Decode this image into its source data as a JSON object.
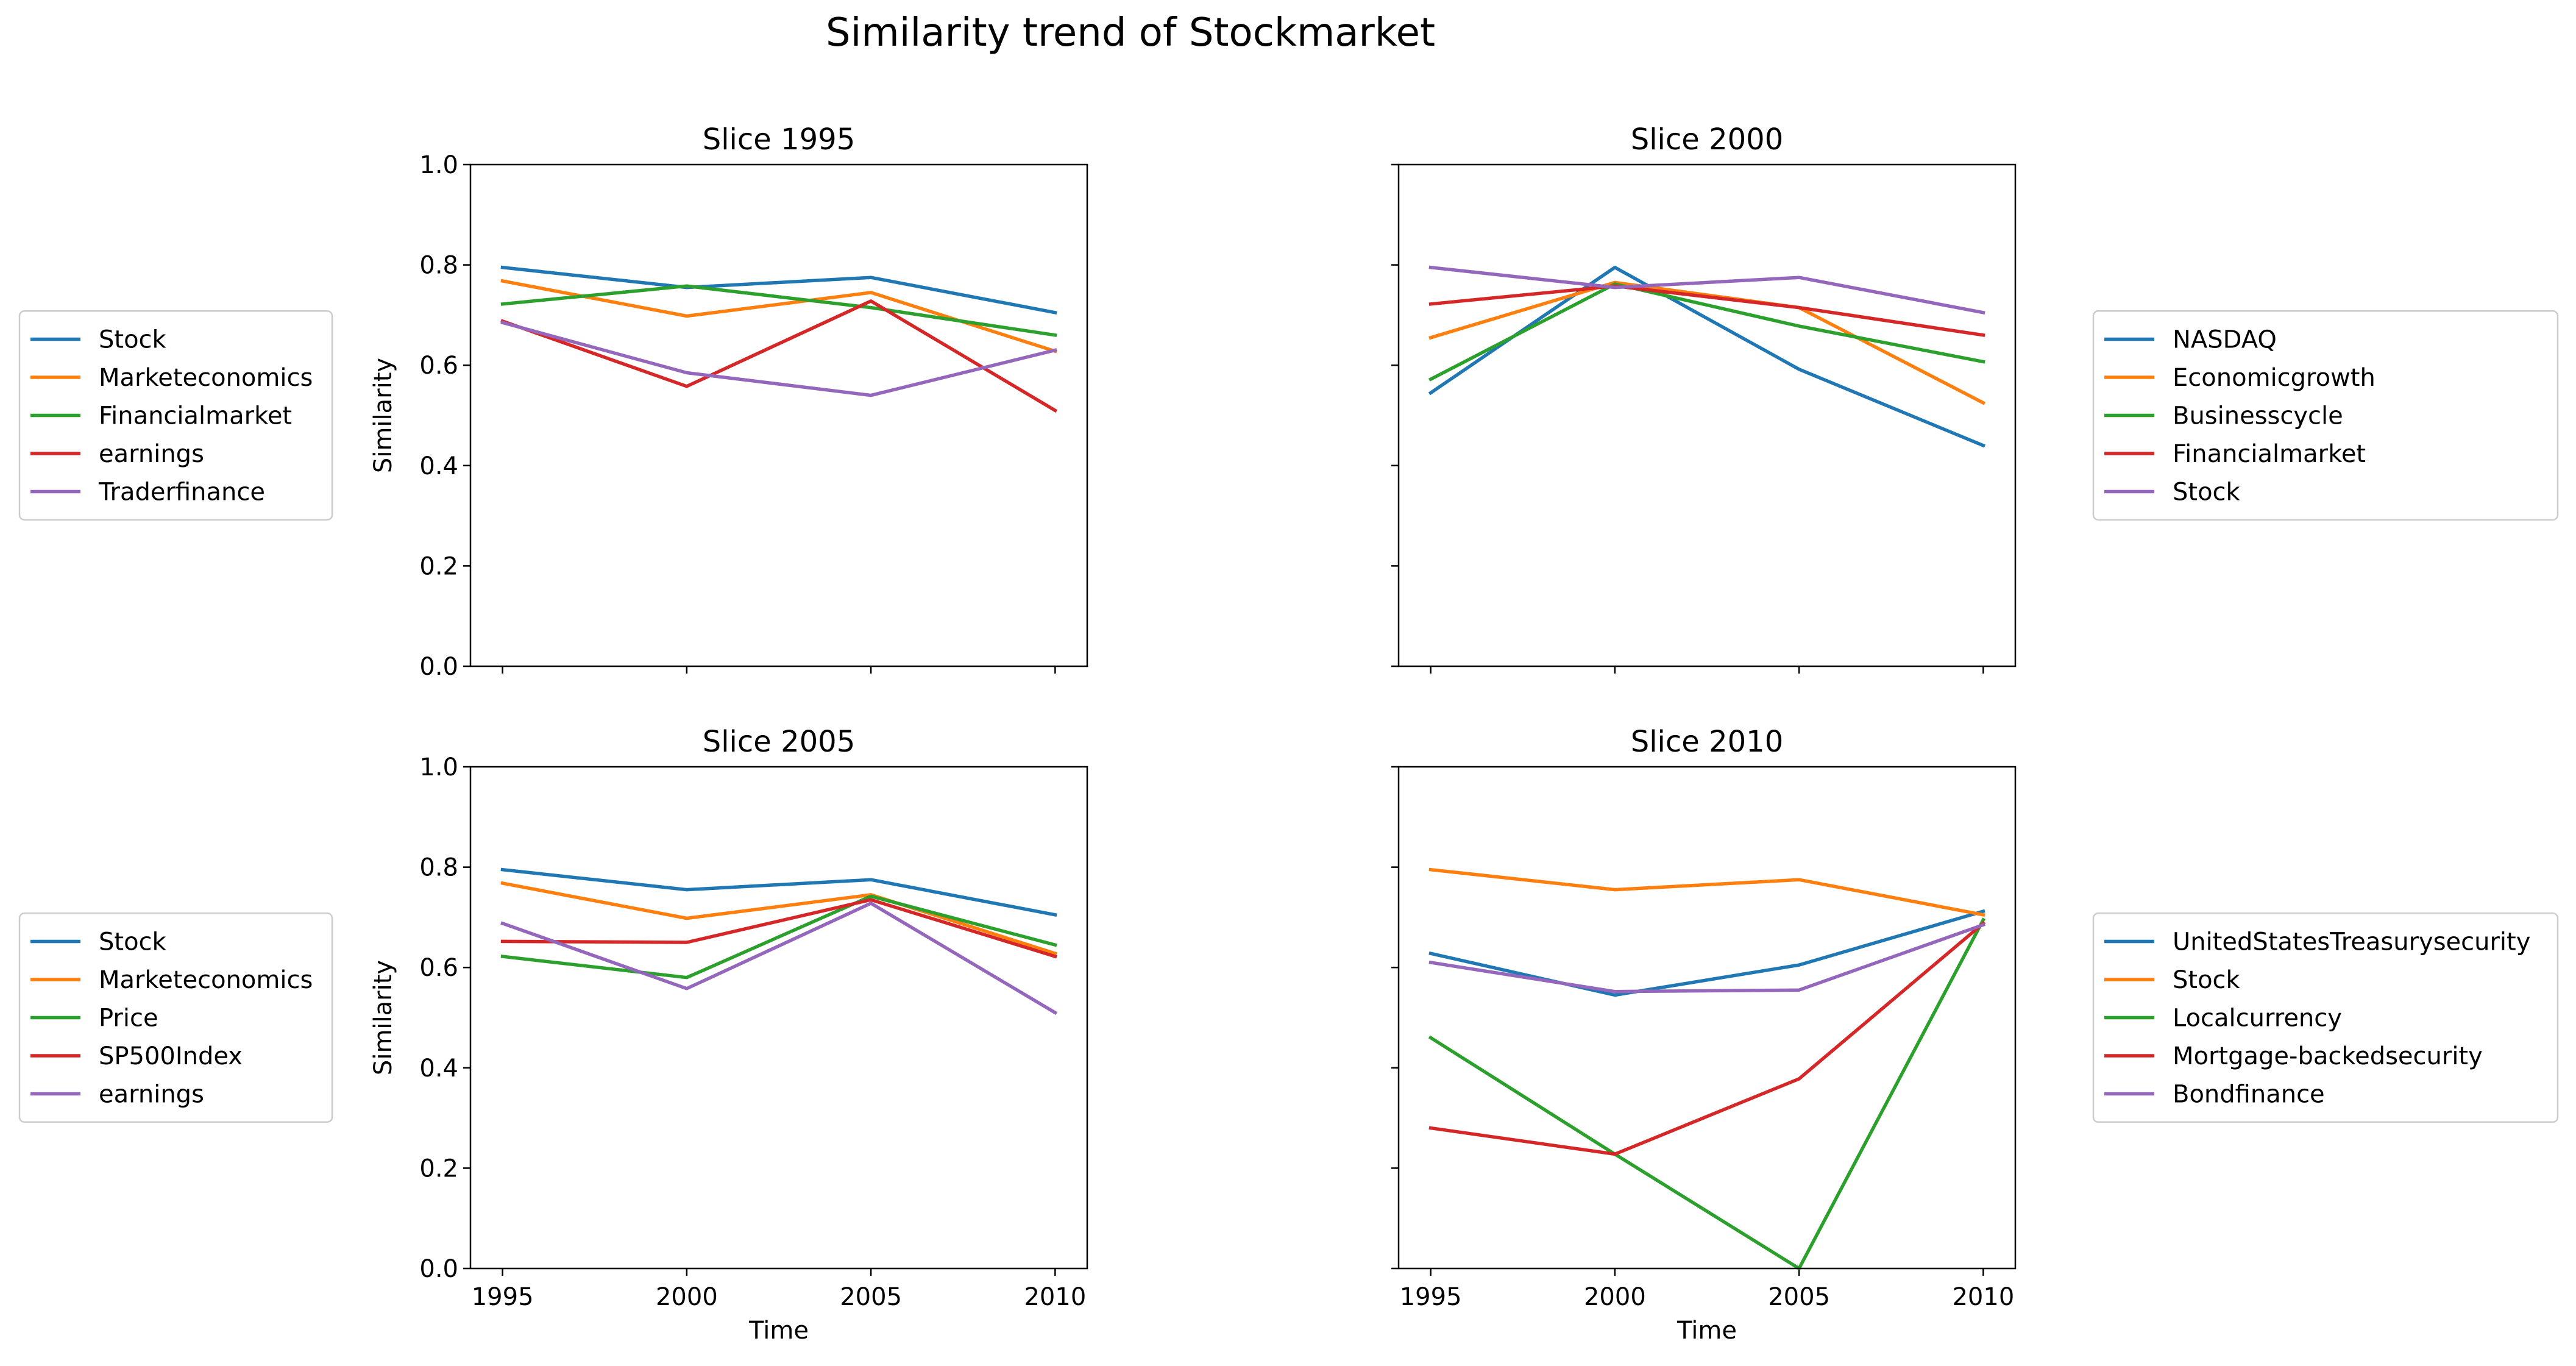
{
  "figure_title": "Similarity trend of Stockmarket",
  "chart_data": [
    {
      "type": "line",
      "title": "Slice 1995",
      "xlabel": "",
      "ylabel": "Similarity",
      "x": [
        "1995",
        "2000",
        "2005",
        "2010"
      ],
      "ylim": [
        0,
        1
      ],
      "yticks": [
        "0.0",
        "0.2",
        "0.4",
        "0.6",
        "0.8",
        "1.0"
      ],
      "show_xtick_labels": false,
      "show_ytick_labels": true,
      "legend_position": "left",
      "grid": false,
      "series": [
        {
          "name": "Stock",
          "color": "#1f77b4",
          "values": [
            0.795,
            0.755,
            0.775,
            0.705
          ]
        },
        {
          "name": "Marketeconomics",
          "color": "#ff7f0e",
          "values": [
            0.768,
            0.698,
            0.745,
            0.628
          ]
        },
        {
          "name": "Financialmarket",
          "color": "#2ca02c",
          "values": [
            0.722,
            0.758,
            0.715,
            0.66
          ]
        },
        {
          "name": "earnings",
          "color": "#d62728",
          "values": [
            0.688,
            0.558,
            0.728,
            0.51
          ]
        },
        {
          "name": "Traderfinance",
          "color": "#9467bd",
          "values": [
            0.685,
            0.585,
            0.54,
            0.63
          ]
        }
      ]
    },
    {
      "type": "line",
      "title": "Slice 2000",
      "xlabel": "",
      "ylabel": "",
      "x": [
        "1995",
        "2000",
        "2005",
        "2010"
      ],
      "ylim": [
        0,
        1
      ],
      "yticks": [
        "0.0",
        "0.2",
        "0.4",
        "0.6",
        "0.8",
        "1.0"
      ],
      "show_xtick_labels": false,
      "show_ytick_labels": false,
      "legend_position": "right",
      "grid": false,
      "series": [
        {
          "name": "NASDAQ",
          "color": "#1f77b4",
          "values": [
            0.545,
            0.795,
            0.592,
            0.44
          ]
        },
        {
          "name": "Economicgrowth",
          "color": "#ff7f0e",
          "values": [
            0.655,
            0.765,
            0.715,
            0.525
          ]
        },
        {
          "name": "Businesscycle",
          "color": "#2ca02c",
          "values": [
            0.572,
            0.762,
            0.678,
            0.607
          ]
        },
        {
          "name": "Financialmarket",
          "color": "#d62728",
          "values": [
            0.722,
            0.758,
            0.715,
            0.66
          ]
        },
        {
          "name": "Stock",
          "color": "#9467bd",
          "values": [
            0.795,
            0.755,
            0.775,
            0.705
          ]
        }
      ]
    },
    {
      "type": "line",
      "title": "Slice 2005",
      "xlabel": "Time",
      "ylabel": "Similarity",
      "x": [
        "1995",
        "2000",
        "2005",
        "2010"
      ],
      "ylim": [
        0,
        1
      ],
      "yticks": [
        "0.0",
        "0.2",
        "0.4",
        "0.6",
        "0.8",
        "1.0"
      ],
      "show_xtick_labels": true,
      "show_ytick_labels": true,
      "legend_position": "left",
      "grid": false,
      "series": [
        {
          "name": "Stock",
          "color": "#1f77b4",
          "values": [
            0.795,
            0.755,
            0.775,
            0.705
          ]
        },
        {
          "name": "Marketeconomics",
          "color": "#ff7f0e",
          "values": [
            0.768,
            0.698,
            0.745,
            0.628
          ]
        },
        {
          "name": "Price",
          "color": "#2ca02c",
          "values": [
            0.622,
            0.58,
            0.742,
            0.645
          ]
        },
        {
          "name": "SP500Index",
          "color": "#d62728",
          "values": [
            0.652,
            0.65,
            0.735,
            0.622
          ]
        },
        {
          "name": "earnings",
          "color": "#9467bd",
          "values": [
            0.688,
            0.558,
            0.728,
            0.51
          ]
        }
      ]
    },
    {
      "type": "line",
      "title": "Slice 2010",
      "xlabel": "Time",
      "ylabel": "",
      "x": [
        "1995",
        "2000",
        "2005",
        "2010"
      ],
      "ylim": [
        0,
        1
      ],
      "yticks": [
        "0.0",
        "0.2",
        "0.4",
        "0.6",
        "0.8",
        "1.0"
      ],
      "show_xtick_labels": true,
      "show_ytick_labels": false,
      "legend_position": "right",
      "grid": false,
      "series": [
        {
          "name": "UnitedStatesTreasurysecurity",
          "color": "#1f77b4",
          "values": [
            0.628,
            0.545,
            0.605,
            0.712
          ]
        },
        {
          "name": "Stock",
          "color": "#ff7f0e",
          "values": [
            0.795,
            0.755,
            0.775,
            0.705
          ]
        },
        {
          "name": "Localcurrency",
          "color": "#2ca02c",
          "values": [
            0.46,
            0.228,
            0.0,
            0.695
          ]
        },
        {
          "name": "Mortgage-backedsecurity",
          "color": "#d62728",
          "values": [
            0.28,
            0.228,
            0.378,
            0.688
          ]
        },
        {
          "name": "Bondfinance",
          "color": "#9467bd",
          "values": [
            0.61,
            0.552,
            0.555,
            0.685
          ]
        }
      ]
    }
  ]
}
